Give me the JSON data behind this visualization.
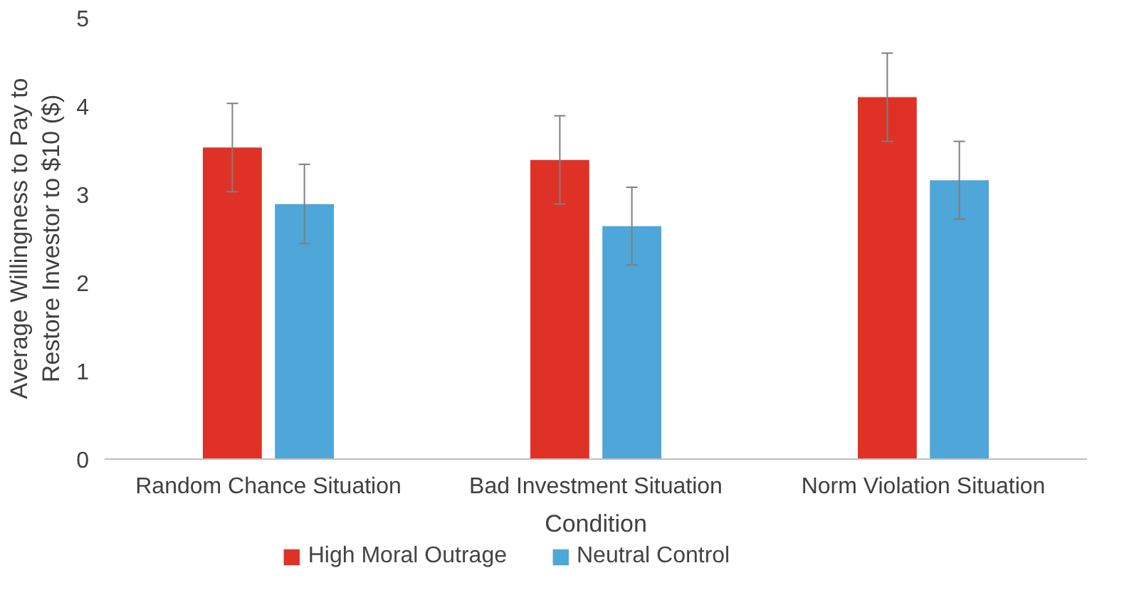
{
  "chart_data": {
    "type": "bar",
    "xlabel": "Condition",
    "ylabel": "Average Willingness to Pay to Restore Investor to $10 ($)",
    "categories": [
      "Random Chance Situation",
      "Bad Investment Situation",
      "Norm Violation Situation"
    ],
    "series": [
      {
        "name": "High Moral Outrage",
        "color": "#e03127",
        "values": [
          3.53,
          3.39,
          4.1
        ],
        "errors": [
          0.5,
          0.5,
          0.5
        ]
      },
      {
        "name": "Neutral Control",
        "color": "#4fa6d8",
        "values": [
          2.89,
          2.64,
          3.16
        ],
        "errors": [
          0.45,
          0.44,
          0.44
        ]
      }
    ],
    "ylim": [
      0,
      5
    ],
    "yticks": [
      0,
      1,
      2,
      3,
      4,
      5
    ],
    "grid": false,
    "legend": "bottom"
  }
}
